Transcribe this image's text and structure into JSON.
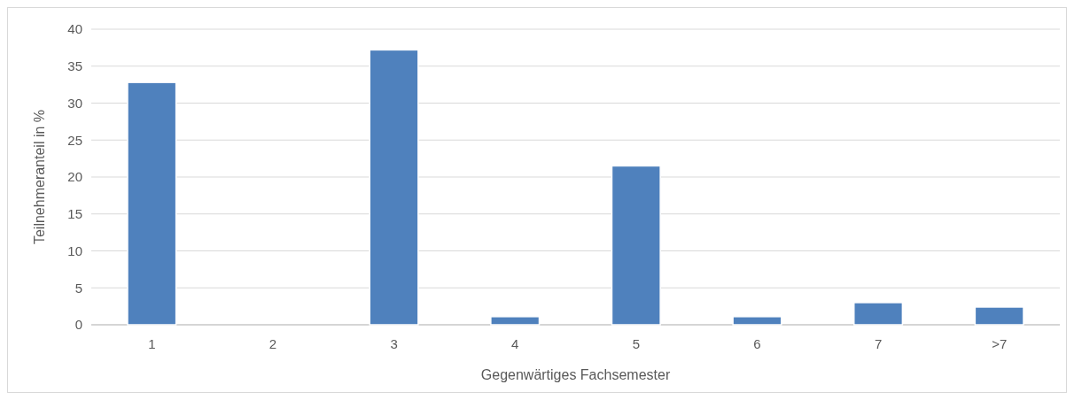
{
  "chart_data": {
    "type": "bar",
    "xlabel": "Gegenwärtiges Fachsemester",
    "ylabel": "Teilnehmeranteil in %",
    "categories": [
      "1",
      "2",
      "3",
      "4",
      "5",
      "6",
      "7",
      ">7"
    ],
    "values": [
      32.8,
      0,
      37.2,
      1.1,
      21.5,
      1.1,
      3.0,
      2.4
    ],
    "color": "#4f81bd",
    "ylim": [
      0,
      40
    ],
    "yticks": [
      0,
      5,
      10,
      15,
      20,
      25,
      30,
      35,
      40
    ],
    "grid": "y"
  }
}
